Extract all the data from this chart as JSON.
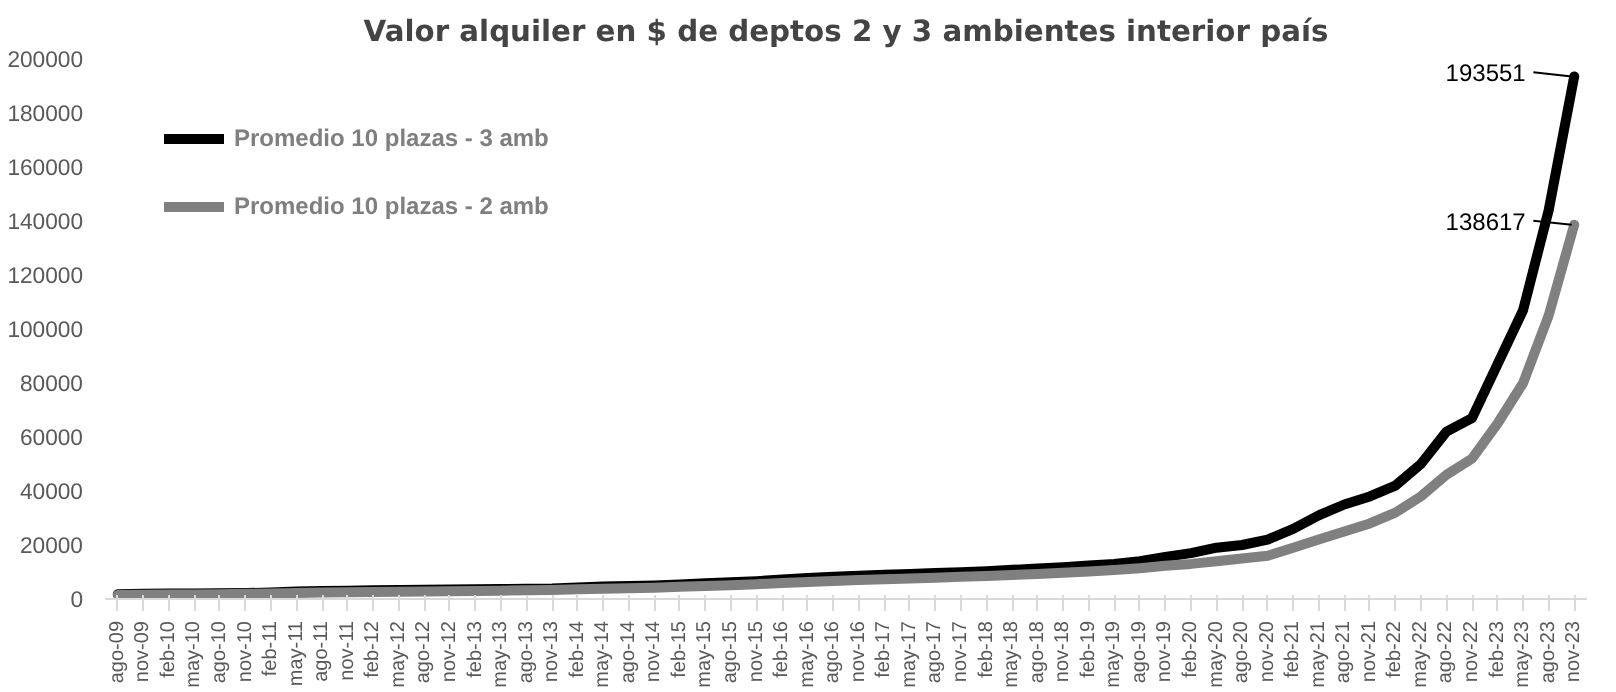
{
  "chart_data": {
    "type": "line",
    "title": "Valor alquiler en $ de deptos 2 y 3 ambientes interior país",
    "categories": [
      "ago-09",
      "nov-09",
      "feb-10",
      "may-10",
      "ago-10",
      "nov-10",
      "feb-11",
      "may-11",
      "ago-11",
      "nov-11",
      "feb-12",
      "may-12",
      "ago-12",
      "nov-12",
      "feb-13",
      "may-13",
      "ago-13",
      "nov-13",
      "feb-14",
      "may-14",
      "ago-14",
      "nov-14",
      "feb-15",
      "may-15",
      "ago-15",
      "nov-15",
      "feb-16",
      "may-16",
      "ago-16",
      "nov-16",
      "feb-17",
      "may-17",
      "ago-17",
      "nov-17",
      "feb-18",
      "may-18",
      "ago-18",
      "nov-18",
      "feb-19",
      "may-19",
      "ago-19",
      "nov-19",
      "feb-20",
      "may-20",
      "ago-20",
      "nov-20",
      "feb-21",
      "may-21",
      "ago-21",
      "nov-21",
      "feb-22",
      "may-22",
      "ago-22",
      "nov-22",
      "feb-23",
      "may-23",
      "ago-23",
      "nov-23"
    ],
    "series": [
      {
        "name": "Promedio 10 plazas - 3 amb",
        "color": "#000000",
        "values": [
          1800,
          1900,
          2000,
          2000,
          2100,
          2200,
          2400,
          2800,
          3000,
          3100,
          3200,
          3300,
          3400,
          3500,
          3600,
          3700,
          3800,
          3900,
          4300,
          4600,
          4800,
          5000,
          5400,
          5800,
          6200,
          6600,
          7200,
          7800,
          8200,
          8600,
          9000,
          9300,
          9600,
          9900,
          10300,
          10800,
          11300,
          11800,
          12400,
          13000,
          14000,
          15600,
          17000,
          19000,
          20000,
          22000,
          26000,
          31000,
          35000,
          38000,
          42000,
          50000,
          62000,
          67000,
          87000,
          107000,
          144000,
          193551
        ],
        "value_labels": [
          null,
          null,
          null,
          null,
          null,
          null,
          null,
          null,
          null,
          null,
          null,
          null,
          null,
          null,
          null,
          null,
          null,
          null,
          null,
          null,
          null,
          null,
          null,
          null,
          null,
          null,
          null,
          null,
          null,
          null,
          null,
          null,
          null,
          null,
          null,
          null,
          null,
          null,
          null,
          null,
          null,
          null,
          null,
          null,
          null,
          null,
          null,
          null,
          null,
          null,
          null,
          null,
          null,
          null,
          null,
          null,
          null,
          "193551"
        ]
      },
      {
        "name": "Promedio 10 plazas - 2 amb",
        "color": "#808080",
        "values": [
          1500,
          1600,
          1700,
          1700,
          1800,
          1900,
          2000,
          2200,
          2400,
          2500,
          2600,
          2700,
          2800,
          2900,
          3000,
          3100,
          3200,
          3300,
          3600,
          3800,
          4000,
          4200,
          4500,
          4800,
          5100,
          5500,
          5900,
          6300,
          6700,
          7000,
          7300,
          7600,
          7900,
          8200,
          8500,
          8900,
          9300,
          9700,
          10200,
          10700,
          11400,
          12300,
          13000,
          14000,
          15000,
          16000,
          19000,
          22000,
          25000,
          28000,
          32000,
          38000,
          46000,
          52000,
          65000,
          80000,
          105000,
          138617
        ],
        "value_labels": [
          null,
          null,
          null,
          null,
          null,
          null,
          null,
          null,
          null,
          null,
          null,
          null,
          null,
          null,
          null,
          null,
          null,
          null,
          null,
          null,
          null,
          null,
          null,
          null,
          null,
          null,
          null,
          null,
          null,
          null,
          null,
          null,
          null,
          null,
          null,
          null,
          null,
          null,
          null,
          null,
          null,
          null,
          null,
          null,
          null,
          null,
          null,
          null,
          null,
          null,
          null,
          null,
          null,
          null,
          null,
          null,
          null,
          "138617"
        ]
      }
    ],
    "ylim": [
      0,
      200000
    ],
    "yticks": [
      0,
      20000,
      40000,
      60000,
      80000,
      100000,
      120000,
      140000,
      160000,
      180000,
      200000
    ],
    "grid": false,
    "legend": "top left",
    "line_style": "solid",
    "marker": "none"
  }
}
